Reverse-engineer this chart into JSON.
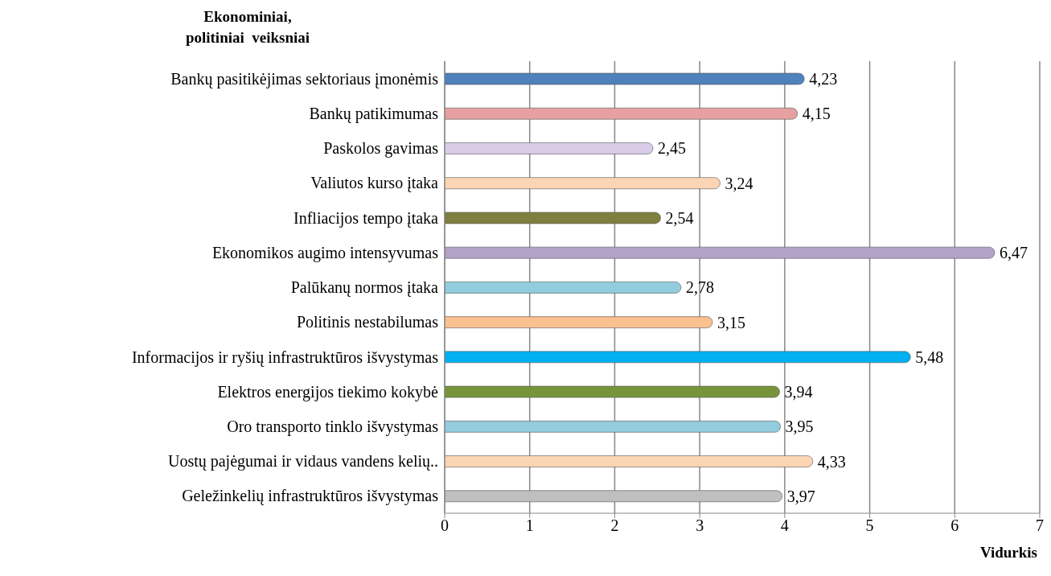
{
  "chart_data": {
    "type": "bar",
    "orientation": "horizontal",
    "ylabel": "Ekonominiai,\npolitiniai  veiksniai",
    "xlabel": "Vidurkis",
    "categories": [
      "Bankų pasitikėjimas sektoriaus įmonėmis",
      "Bankų patikimumas",
      "Paskolos gavimas",
      "Valiutos kurso įtaka",
      "Infliacijos tempo įtaka",
      "Ekonomikos augimo intensyvumas",
      "Palūkanų normos įtaka",
      "Politinis nestabilumas",
      "Informacijos ir ryšių infrastruktūros išvystymas",
      "Elektros energijos tiekimo kokybė",
      "Oro transporto tinklo išvystymas",
      "Uostų pajėgumai ir vidaus vandens kelių..",
      "Geležinkelių infrastruktūros išvystymas"
    ],
    "values": [
      4.23,
      4.15,
      2.45,
      3.24,
      2.54,
      6.47,
      2.78,
      3.15,
      5.48,
      3.94,
      3.95,
      4.33,
      3.97
    ],
    "value_labels": [
      "4,23",
      "4,15",
      "2,45",
      "3,24",
      "2,54",
      "6,47",
      "2,78",
      "3,15",
      "5,48",
      "3,94",
      "3,95",
      "4,33",
      "3,97"
    ],
    "colors": [
      "#4f81bd",
      "#e6a0a0",
      "#d9cce8",
      "#fcd5b5",
      "#7f7f3f",
      "#b3a2c7",
      "#93cddd",
      "#fac090",
      "#00b0f0",
      "#77933c",
      "#93cddd",
      "#fcd5b5",
      "#bfbfbf"
    ],
    "xlim": [
      0,
      7
    ],
    "xticks": [
      0,
      1,
      2,
      3,
      4,
      5,
      6,
      7
    ],
    "grid": "x"
  }
}
